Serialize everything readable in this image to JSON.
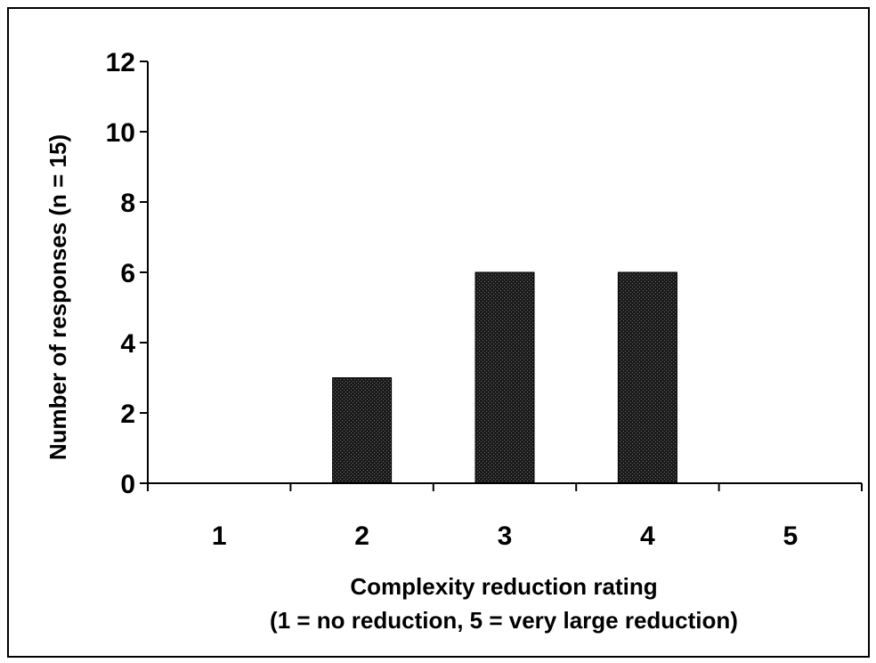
{
  "chart_data": {
    "type": "bar",
    "categories": [
      "1",
      "2",
      "3",
      "4",
      "5"
    ],
    "values": [
      0,
      3,
      6,
      6,
      0
    ],
    "title": "",
    "xlabel": "Complexity reduction rating",
    "xlabel_line2": "(1 = no reduction, 5 = very large reduction)",
    "ylabel": "Number of responses (n = 15)",
    "ylim": [
      0,
      12
    ],
    "yticks": [
      "0",
      "2",
      "4",
      "6",
      "8",
      "10",
      "12"
    ],
    "grid": false,
    "legend": "none",
    "bar_color": "#1a1a1a",
    "axis_color": "#000000"
  }
}
